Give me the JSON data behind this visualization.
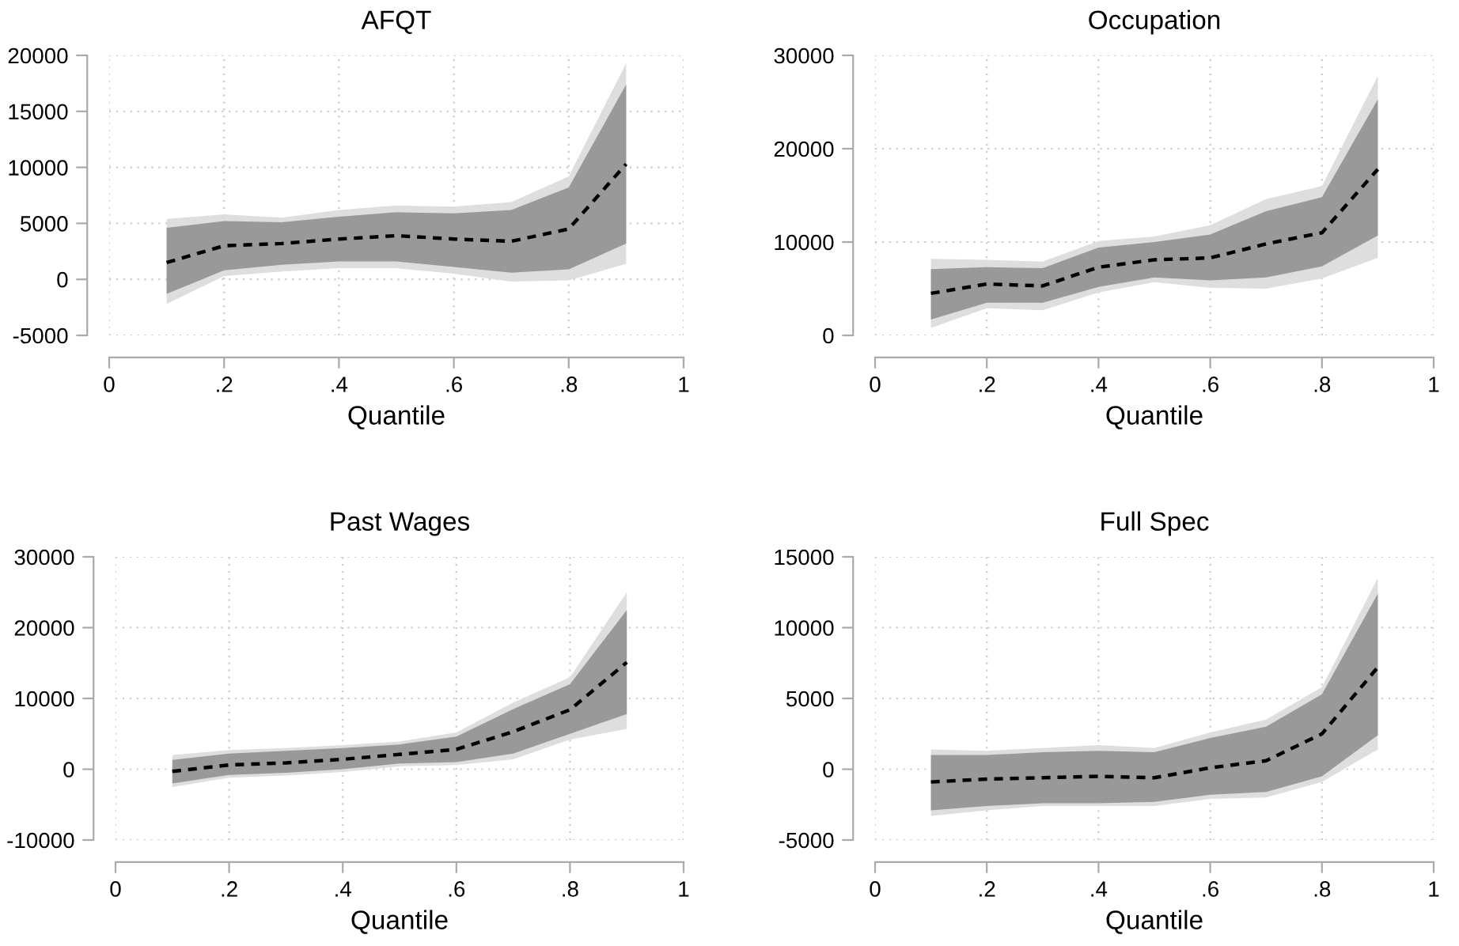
{
  "chart_data": [
    {
      "type": "line",
      "title": "AFQT",
      "xlabel": "Quantile",
      "xlim": [
        0,
        1
      ],
      "ylim": [
        -5000,
        20000
      ],
      "xticks": [
        0,
        {
          "value": 0.2,
          "label": ".2"
        },
        {
          "value": 0.4,
          "label": ".4"
        },
        {
          "value": 0.6,
          "label": ".6"
        },
        {
          "value": 0.8,
          "label": ".8"
        },
        1
      ],
      "yticks": [
        -5000,
        0,
        5000,
        10000,
        15000,
        20000
      ],
      "grid": true,
      "x": [
        0.1,
        0.2,
        0.3,
        0.4,
        0.5,
        0.6,
        0.7,
        0.8,
        0.9
      ],
      "series": [
        {
          "color": "#dedede",
          "values": [
            null,
            null,
            null,
            null,
            null,
            null,
            null,
            null,
            null
          ],
          "lower": [
            -2200,
            300,
            700,
            1000,
            1000,
            500,
            -200,
            -100,
            1400
          ],
          "upper": [
            5400,
            5800,
            5500,
            6200,
            6600,
            6500,
            6900,
            9200,
            19300
          ]
        },
        {
          "color": "#000000",
          "line_style": "dashed",
          "values": [
            1500,
            3000,
            3200,
            3600,
            3900,
            3600,
            3400,
            4500,
            10300
          ],
          "lower": [
            -1300,
            800,
            1300,
            1600,
            1600,
            1100,
            600,
            900,
            3200
          ],
          "upper": [
            4600,
            5200,
            5100,
            5600,
            6000,
            5900,
            6200,
            8200,
            17400
          ]
        }
      ]
    },
    {
      "type": "line",
      "title": "Occupation",
      "xlabel": "Quantile",
      "xlim": [
        0,
        1
      ],
      "ylim": [
        0,
        30000
      ],
      "xticks": [
        0,
        {
          "value": 0.2,
          "label": ".2"
        },
        {
          "value": 0.4,
          "label": ".4"
        },
        {
          "value": 0.6,
          "label": ".6"
        },
        {
          "value": 0.8,
          "label": ".8"
        },
        1
      ],
      "yticks": [
        0,
        10000,
        20000,
        30000
      ],
      "grid": true,
      "x": [
        0.1,
        0.2,
        0.3,
        0.4,
        0.5,
        0.6,
        0.7,
        0.8,
        0.9
      ],
      "series": [
        {
          "color": "#dedede",
          "values": [
            null,
            null,
            null,
            null,
            null,
            null,
            null,
            null,
            null
          ],
          "lower": [
            800,
            2900,
            2700,
            4600,
            5700,
            5100,
            5000,
            6100,
            8300
          ],
          "upper": [
            8200,
            8100,
            7900,
            10100,
            10600,
            11800,
            14600,
            16000,
            27800
          ]
        },
        {
          "color": "#000000",
          "line_style": "dashed",
          "values": [
            4500,
            5500,
            5300,
            7300,
            8100,
            8300,
            9800,
            11000,
            17800
          ],
          "lower": [
            1700,
            3500,
            3500,
            5200,
            6200,
            5900,
            6200,
            7400,
            10700
          ],
          "upper": [
            7100,
            7300,
            7200,
            9400,
            10000,
            10800,
            13300,
            14800,
            25300
          ]
        }
      ]
    },
    {
      "type": "line",
      "title": "Past Wages",
      "xlabel": "Quantile",
      "xlim": [
        0,
        1
      ],
      "ylim": [
        -10000,
        30000
      ],
      "xticks": [
        0,
        {
          "value": 0.2,
          "label": ".2"
        },
        {
          "value": 0.4,
          "label": ".4"
        },
        {
          "value": 0.6,
          "label": ".6"
        },
        {
          "value": 0.8,
          "label": ".8"
        },
        1
      ],
      "yticks": [
        -10000,
        0,
        10000,
        20000,
        30000
      ],
      "grid": true,
      "x": [
        0.1,
        0.2,
        0.3,
        0.4,
        0.5,
        0.6,
        0.7,
        0.8,
        0.9
      ],
      "series": [
        {
          "color": "#dedede",
          "values": [
            null,
            null,
            null,
            null,
            null,
            null,
            null,
            null,
            null
          ],
          "lower": [
            -2500,
            -1200,
            -900,
            -400,
            400,
            600,
            1400,
            4200,
            5700
          ],
          "upper": [
            2000,
            2700,
            3000,
            3400,
            3900,
            5200,
            9400,
            13000,
            25000
          ]
        },
        {
          "color": "#000000",
          "line_style": "dashed",
          "values": [
            -300,
            600,
            900,
            1400,
            2100,
            2800,
            5300,
            8400,
            15100
          ],
          "lower": [
            -2000,
            -800,
            -500,
            0,
            800,
            1000,
            2200,
            5000,
            7800
          ],
          "upper": [
            1300,
            2200,
            2600,
            3000,
            3500,
            4600,
            8500,
            12000,
            22500
          ]
        }
      ]
    },
    {
      "type": "line",
      "title": "Full Spec",
      "xlabel": "Quantile",
      "xlim": [
        0,
        1
      ],
      "ylim": [
        -5000,
        15000
      ],
      "xticks": [
        0,
        {
          "value": 0.2,
          "label": ".2"
        },
        {
          "value": 0.4,
          "label": ".4"
        },
        {
          "value": 0.6,
          "label": ".6"
        },
        {
          "value": 0.8,
          "label": ".8"
        },
        1
      ],
      "yticks": [
        -5000,
        0,
        5000,
        10000,
        15000
      ],
      "grid": true,
      "x": [
        0.1,
        0.2,
        0.3,
        0.4,
        0.5,
        0.6,
        0.7,
        0.8,
        0.9
      ],
      "series": [
        {
          "color": "#dedede",
          "values": [
            null,
            null,
            null,
            null,
            null,
            null,
            null,
            null,
            null
          ],
          "lower": [
            -3300,
            -2900,
            -2600,
            -2600,
            -2600,
            -2100,
            -2000,
            -900,
            1400
          ],
          "upper": [
            1400,
            1300,
            1500,
            1700,
            1500,
            2600,
            3500,
            5800,
            13500
          ]
        },
        {
          "color": "#000000",
          "line_style": "dashed",
          "values": [
            -900,
            -700,
            -600,
            -500,
            -600,
            100,
            600,
            2500,
            7200
          ],
          "lower": [
            -2900,
            -2600,
            -2400,
            -2400,
            -2300,
            -1800,
            -1600,
            -500,
            2400
          ],
          "upper": [
            1000,
            1000,
            1200,
            1300,
            1200,
            2200,
            3000,
            5300,
            12400
          ]
        }
      ]
    }
  ]
}
